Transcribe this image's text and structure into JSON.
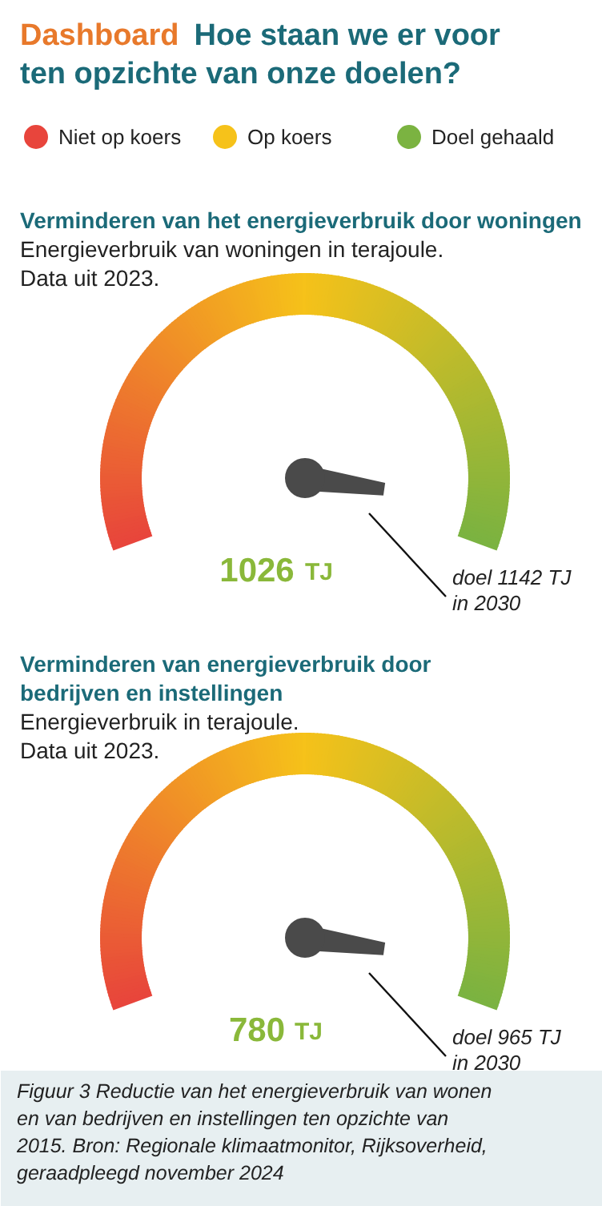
{
  "chart_data": [
    {
      "type": "other",
      "title": "Dashboard Hoe staan we er voor\nten opzichte van onze doelen?",
      "categories": [
        "Niet op koers",
        "Op koers",
        "Doel gehaald"
      ],
      "colors": [
        "#e8453c",
        "#f6c21a",
        "#7bb341"
      ]
    },
    {
      "type": "other",
      "title": "Verminderen van het energieverbruik door woningen",
      "subtitle": "Energieverbruik van woningen in terajoule.\nData uit 2023.",
      "values": [
        1026
      ],
      "data_labels": true,
      "ylabel": "TJ",
      "annotations": [
        "doel 1142 TJ\nin 2030"
      ]
    },
    {
      "type": "other",
      "title": "Verminderen van energieverbruik door\nbedrijven en instellingen",
      "subtitle": "Energieverbruik in terajoule.\nData uit 2023.",
      "values": [
        780
      ],
      "data_labels": true,
      "ylabel": "TJ",
      "annotations": [
        "doel 965 TJ\nin 2030",
        "Figuur 3 Reductie van het energieverbruik van wonen\nen van bedrijven en instellingen ten opzichte van\n2015. Bron: Regionale klimaatmonitor, Rijksoverheid,\ngeraadpleegd november 2024"
      ]
    }
  ]
}
